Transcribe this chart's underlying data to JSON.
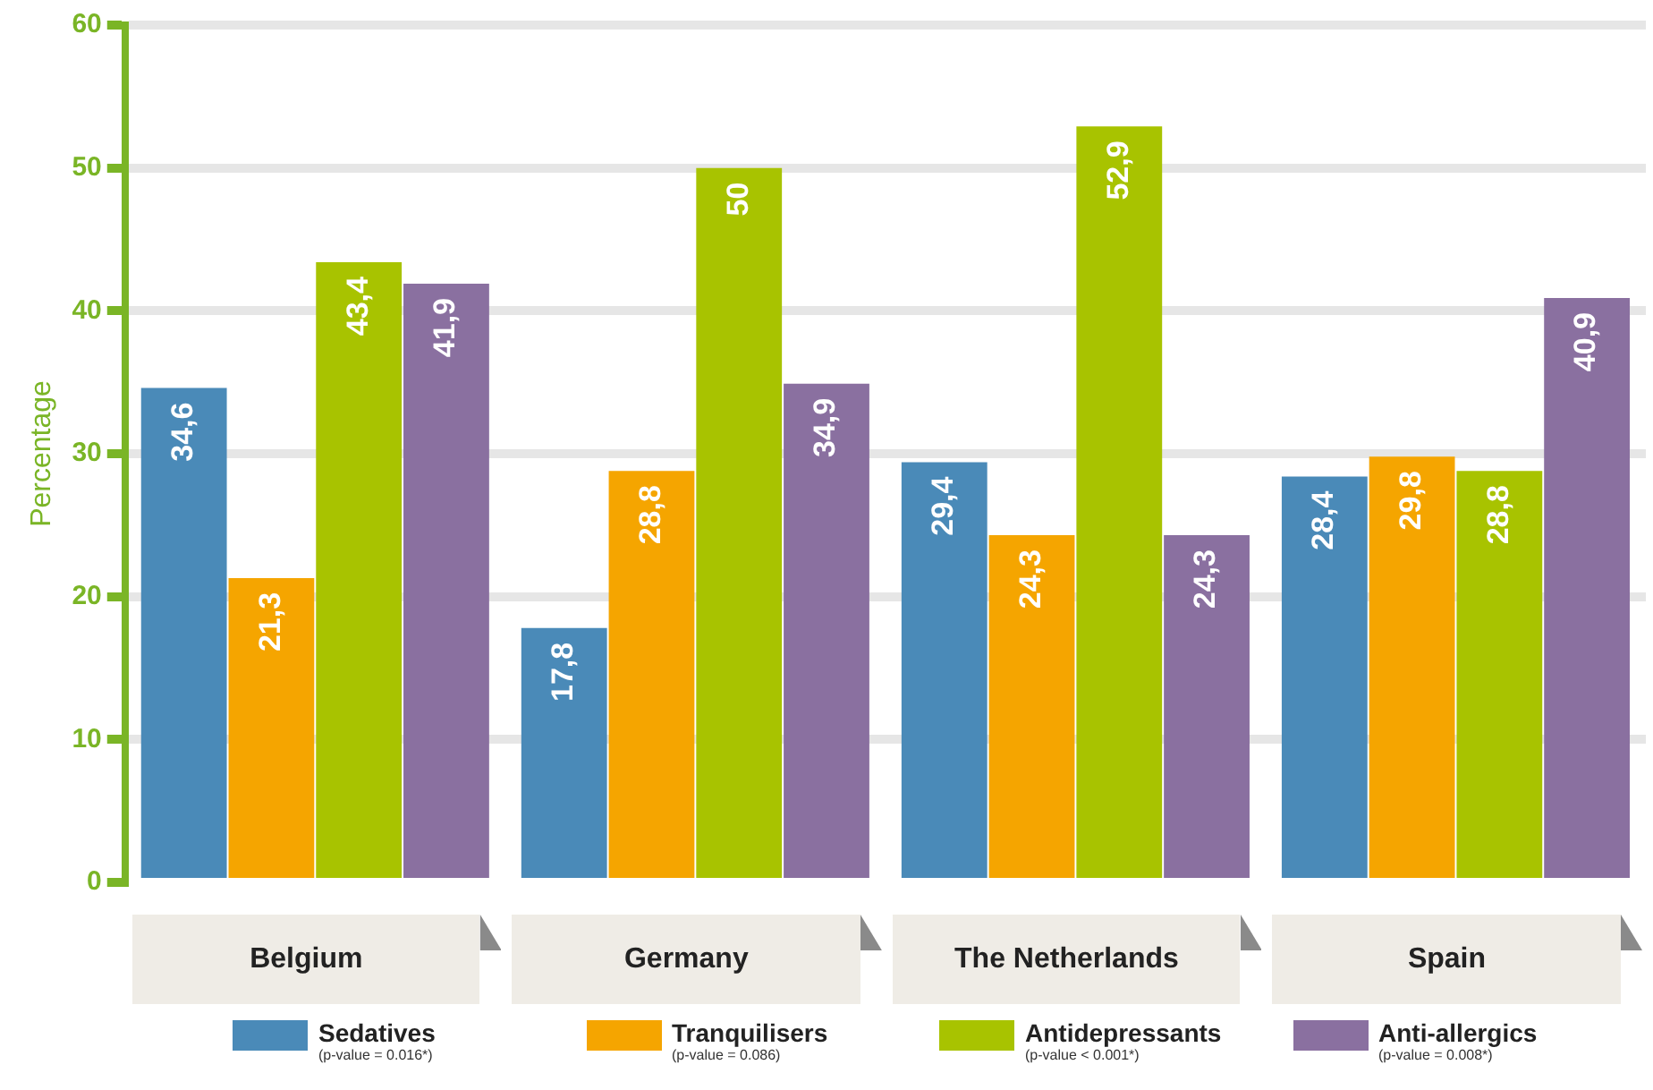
{
  "chart_data": {
    "type": "bar",
    "ylabel": "Percentage",
    "categories": [
      "Belgium",
      "Germany",
      "The Netherlands",
      "Spain"
    ],
    "series": [
      {
        "name": "Sedatives",
        "color": "#4a8ab8",
        "values": [
          34.6,
          17.8,
          29.4,
          28.4
        ],
        "value_labels": [
          "34,6",
          "17,8",
          "29,4",
          "28,4"
        ]
      },
      {
        "name": "Tranquilisers",
        "color": "#f5a500",
        "values": [
          21.3,
          28.8,
          24.3,
          29.8
        ],
        "value_labels": [
          "21,3",
          "28,8",
          "24,3",
          "29,8"
        ]
      },
      {
        "name": "Antidepressants",
        "color": "#a8c300",
        "values": [
          43.4,
          50,
          52.9,
          28.8
        ],
        "value_labels": [
          "43,4",
          "50",
          "52,9",
          "28,8"
        ]
      },
      {
        "name": "Anti-allergics",
        "color": "#8a70a0",
        "values": [
          41.9,
          34.9,
          24.3,
          40.9
        ],
        "value_labels": [
          "41,9",
          "34,9",
          "24,3",
          "40,9"
        ]
      }
    ],
    "annotations": [
      "(p-value = 0.016*)",
      "(p-value = 0.086)",
      "(p-value < 0.001*)",
      "(p-value = 0.008*)"
    ],
    "ylim": [
      0,
      60
    ],
    "yticks": [
      0,
      10,
      20,
      30,
      40,
      50,
      60
    ],
    "grid": "y",
    "legend": "bottom"
  }
}
